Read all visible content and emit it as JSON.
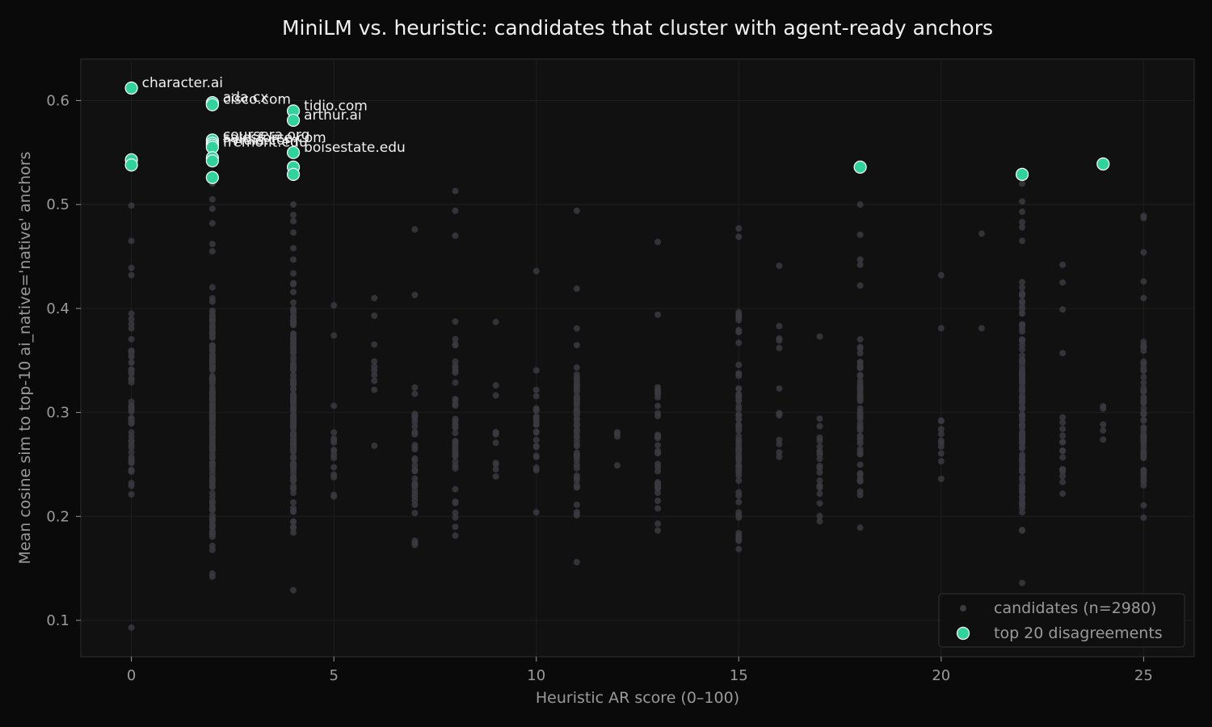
{
  "colors": {
    "page_bg": "#0a0a0a",
    "plot_bg": "#111111",
    "frame": "#2a2a2a",
    "grid": "#1f1f1f",
    "title": "#f0f0f0",
    "axis_text": "#9a9a9a",
    "candidate": "#3a3a3f",
    "highlight": "#2fd39b",
    "highlight_edge": "#ffffff",
    "annotation": "#f0f0f0"
  },
  "chart_data": {
    "type": "scatter",
    "title": "MiniLM vs. heuristic: candidates that cluster with agent-ready anchors",
    "xlabel": "Heuristic AR score (0–100)",
    "ylabel": "Mean cosine sim to top-10 ai_native='native' anchors",
    "xlim": [
      -1.25,
      26.25
    ],
    "ylim": [
      0.065,
      0.64
    ],
    "xticks": [
      0,
      5,
      10,
      15,
      20,
      25
    ],
    "yticks": [
      0.1,
      0.2,
      0.3,
      0.4,
      0.5,
      0.6
    ],
    "ytick_labels": [
      "0.1",
      "0.2",
      "0.3",
      "0.4",
      "0.5",
      "0.6"
    ],
    "grid": true,
    "legend_position": "bottom-right",
    "legend": [
      {
        "label": "candidates (n=2980)",
        "series": "candidates"
      },
      {
        "label": "top 20 disagreements",
        "series": "top20"
      }
    ],
    "candidate_columns": [
      {
        "x": 0,
        "ymin": 0.175,
        "ymax": 0.415,
        "n": 50,
        "extra": [
          0.499,
          0.465,
          0.439,
          0.432,
          0.395,
          0.385,
          0.093
        ]
      },
      {
        "x": 2,
        "ymin": 0.15,
        "ymax": 0.44,
        "n": 160,
        "extra": [
          0.52,
          0.505,
          0.496,
          0.482,
          0.462,
          0.455,
          0.145,
          0.142
        ]
      },
      {
        "x": 4,
        "ymin": 0.16,
        "ymax": 0.44,
        "n": 150,
        "extra": [
          0.5,
          0.49,
          0.484,
          0.473,
          0.458,
          0.447,
          0.129
        ]
      },
      {
        "x": 5,
        "ymin": 0.195,
        "ymax": 0.34,
        "n": 14,
        "extra": [
          0.403,
          0.374
        ]
      },
      {
        "x": 6,
        "ymin": 0.27,
        "ymax": 0.41,
        "n": 5,
        "extra": [
          0.41,
          0.393,
          0.349,
          0.336,
          0.268
        ]
      },
      {
        "x": 7,
        "ymin": 0.165,
        "ymax": 0.36,
        "n": 35,
        "extra": [
          0.476,
          0.413
        ]
      },
      {
        "x": 8,
        "ymin": 0.175,
        "ymax": 0.395,
        "n": 40,
        "extra": [
          0.513,
          0.494,
          0.47
        ]
      },
      {
        "x": 9,
        "ymin": 0.182,
        "ymax": 0.345,
        "n": 10,
        "extra": [
          0.387
        ]
      },
      {
        "x": 10,
        "ymin": 0.19,
        "ymax": 0.38,
        "n": 22,
        "extra": [
          0.436
        ]
      },
      {
        "x": 11,
        "ymin": 0.18,
        "ymax": 0.39,
        "n": 60,
        "extra": [
          0.494,
          0.419,
          0.156
        ]
      },
      {
        "x": 12,
        "ymin": 0.249,
        "ymax": 0.309,
        "n": 3,
        "extra": [
          0.249
        ]
      },
      {
        "x": 13,
        "ymin": 0.176,
        "ymax": 0.345,
        "n": 35,
        "extra": [
          0.464,
          0.394
        ]
      },
      {
        "x": 15,
        "ymin": 0.155,
        "ymax": 0.42,
        "n": 70,
        "extra": [
          0.477,
          0.469
        ]
      },
      {
        "x": 16,
        "ymin": 0.193,
        "ymax": 0.4,
        "n": 10,
        "extra": [
          0.441,
          0.383,
          0.362
        ]
      },
      {
        "x": 17,
        "ymin": 0.175,
        "ymax": 0.325,
        "n": 20,
        "extra": [
          0.373
        ]
      },
      {
        "x": 18,
        "ymin": 0.187,
        "ymax": 0.39,
        "n": 60,
        "extra": [
          0.5,
          0.471,
          0.447,
          0.442,
          0.422
        ]
      },
      {
        "x": 20,
        "ymin": 0.203,
        "ymax": 0.34,
        "n": 10,
        "extra": [
          0.432,
          0.381
        ]
      },
      {
        "x": 21,
        "ymin": 0.381,
        "ymax": 0.381,
        "n": 1,
        "extra": [
          0.472
        ]
      },
      {
        "x": 22,
        "ymin": 0.172,
        "ymax": 0.44,
        "n": 120,
        "extra": [
          0.52,
          0.503,
          0.493,
          0.483,
          0.478,
          0.465,
          0.136
        ]
      },
      {
        "x": 23,
        "ymin": 0.207,
        "ymax": 0.335,
        "n": 16,
        "extra": [
          0.442,
          0.425,
          0.399,
          0.357
        ]
      },
      {
        "x": 24,
        "ymin": 0.268,
        "ymax": 0.306,
        "n": 4,
        "extra": [
          0.306
        ]
      },
      {
        "x": 25,
        "ymin": 0.188,
        "ymax": 0.39,
        "n": 60,
        "extra": [
          0.489,
          0.487,
          0.454,
          0.426,
          0.41
        ]
      }
    ],
    "top20": [
      {
        "x": 0,
        "y": 0.612,
        "label": "character.ai"
      },
      {
        "x": 0,
        "y": 0.543,
        "label": ""
      },
      {
        "x": 0,
        "y": 0.538,
        "label": ""
      },
      {
        "x": 2,
        "y": 0.598,
        "label": "ada.cx"
      },
      {
        "x": 2,
        "y": 0.596,
        "label": "cisco.com"
      },
      {
        "x": 2,
        "y": 0.562,
        "label": "coursera.org"
      },
      {
        "x": 2,
        "y": 0.559,
        "label": "salesforce.com"
      },
      {
        "x": 2,
        "y": 0.557,
        "label": "nvidia.com"
      },
      {
        "x": 2,
        "y": 0.555,
        "label": "fremont.edu"
      },
      {
        "x": 2,
        "y": 0.545,
        "label": ""
      },
      {
        "x": 2,
        "y": 0.542,
        "label": ""
      },
      {
        "x": 2,
        "y": 0.526,
        "label": ""
      },
      {
        "x": 4,
        "y": 0.59,
        "label": "tidio.com"
      },
      {
        "x": 4,
        "y": 0.581,
        "label": "arthur.ai"
      },
      {
        "x": 4,
        "y": 0.55,
        "label": "boisestate.edu"
      },
      {
        "x": 4,
        "y": 0.536,
        "label": ""
      },
      {
        "x": 4,
        "y": 0.529,
        "label": ""
      },
      {
        "x": 18,
        "y": 0.536,
        "label": ""
      },
      {
        "x": 22,
        "y": 0.529,
        "label": ""
      },
      {
        "x": 24,
        "y": 0.539,
        "label": ""
      }
    ]
  }
}
